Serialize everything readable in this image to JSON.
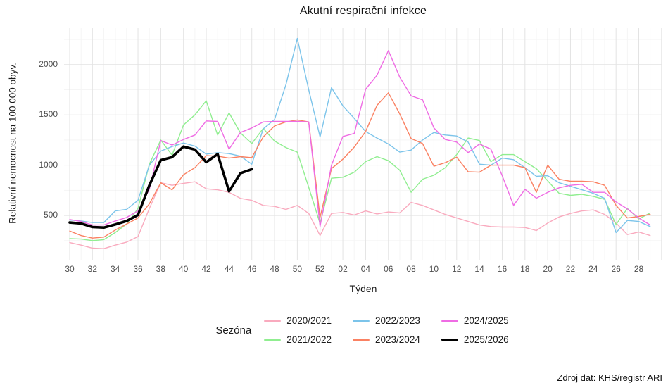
{
  "title": "Akutní respirační infekce",
  "y_axis": {
    "label": "Relativní nemocnost na 100 000 obyv.",
    "ticks": [
      500,
      1000,
      1500,
      2000
    ]
  },
  "x_axis": {
    "label": "Týden",
    "tick_labels": [
      "30",
      "32",
      "34",
      "36",
      "38",
      "40",
      "42",
      "44",
      "46",
      "48",
      "50",
      "52",
      "02",
      "04",
      "06",
      "08",
      "10",
      "12",
      "14",
      "16",
      "18",
      "20",
      "22",
      "24",
      "26",
      "28"
    ]
  },
  "legend": {
    "title": "Sezóna"
  },
  "source_note": "Zdroj dat: KHS/registr ARI",
  "colors": {
    "grid_major": "#e3e3e3",
    "grid_minor": "#f5f5f5",
    "axis_text": "#4d4d4d"
  },
  "chart_data": {
    "type": "line",
    "title": "Akutní respirační infekce",
    "xlabel": "Týden",
    "ylabel": "Relativní nemocnost na 100 000 obyv.",
    "ylim": [
      0,
      2350
    ],
    "grid": true,
    "legend_position": "bottom",
    "x": [
      "30",
      "31",
      "32",
      "33",
      "34",
      "35",
      "36",
      "37",
      "38",
      "39",
      "40",
      "41",
      "42",
      "43",
      "44",
      "45",
      "46",
      "47",
      "48",
      "49",
      "50",
      "51",
      "52",
      "01",
      "02",
      "03",
      "04",
      "05",
      "06",
      "07",
      "08",
      "09",
      "10",
      "11",
      "12",
      "13",
      "14",
      "15",
      "16",
      "17",
      "18",
      "19",
      "20",
      "21",
      "22",
      "23",
      "24",
      "25",
      "26",
      "27",
      "28",
      "29"
    ],
    "series": [
      {
        "name": "2020/2021",
        "color": "#f9aabe",
        "width": 1.4,
        "values": [
          230,
          205,
          175,
          170,
          205,
          235,
          290,
          570,
          825,
          800,
          820,
          835,
          765,
          755,
          730,
          670,
          650,
          600,
          590,
          560,
          600,
          520,
          300,
          520,
          530,
          505,
          545,
          515,
          535,
          525,
          630,
          600,
          555,
          510,
          475,
          440,
          405,
          390,
          385,
          385,
          380,
          350,
          425,
          485,
          520,
          545,
          555,
          510,
          425,
          310,
          335,
          300
        ]
      },
      {
        "name": "2021/2022",
        "color": "#90ee90",
        "width": 1.4,
        "values": [
          270,
          265,
          250,
          260,
          330,
          415,
          570,
          1010,
          1250,
          1100,
          1400,
          1500,
          1640,
          1300,
          1520,
          1320,
          1215,
          1365,
          1240,
          1175,
          1130,
          780,
          420,
          870,
          880,
          930,
          1035,
          1085,
          1045,
          950,
          730,
          860,
          900,
          975,
          1105,
          1270,
          1245,
          1035,
          1105,
          1105,
          1035,
          965,
          845,
          720,
          700,
          710,
          690,
          660,
          410,
          570,
          465,
          525
        ]
      },
      {
        "name": "2022/2023",
        "color": "#7cc4ea",
        "width": 1.4,
        "values": [
          455,
          445,
          430,
          430,
          545,
          560,
          650,
          1000,
          1140,
          1185,
          1220,
          1190,
          1110,
          1125,
          1115,
          1090,
          1010,
          1360,
          1455,
          1800,
          2260,
          1750,
          1280,
          1770,
          1590,
          1465,
          1335,
          1270,
          1210,
          1130,
          1150,
          1250,
          1325,
          1300,
          1290,
          1230,
          1010,
          1000,
          1070,
          1055,
          975,
          890,
          895,
          825,
          790,
          755,
          720,
          670,
          330,
          450,
          440,
          390
        ]
      },
      {
        "name": "2023/2024",
        "color": "#fa8162",
        "width": 1.4,
        "values": [
          345,
          300,
          275,
          285,
          355,
          415,
          475,
          615,
          825,
          755,
          905,
          975,
          1095,
          1090,
          1070,
          1085,
          1075,
          1280,
          1390,
          1430,
          1450,
          1430,
          480,
          965,
          1060,
          1180,
          1335,
          1595,
          1720,
          1510,
          1265,
          1215,
          990,
          1025,
          1080,
          935,
          930,
          1000,
          1000,
          1000,
          975,
          730,
          1000,
          860,
          840,
          840,
          835,
          800,
          600,
          475,
          490,
          510
        ]
      },
      {
        "name": "2024/2025",
        "color": "#ef6ce4",
        "width": 1.4,
        "values": [
          460,
          440,
          405,
          405,
          445,
          480,
          545,
          760,
          1245,
          1200,
          1255,
          1300,
          1440,
          1435,
          1160,
          1325,
          1370,
          1430,
          1435,
          1435,
          1435,
          1430,
          390,
          1000,
          1285,
          1315,
          1755,
          1895,
          2140,
          1875,
          1690,
          1650,
          1370,
          1255,
          1230,
          1125,
          1210,
          1160,
          895,
          600,
          760,
          672,
          730,
          775,
          800,
          810,
          730,
          730,
          635,
          565,
          475,
          405
        ]
      },
      {
        "name": "2025/2026",
        "color": "#000000",
        "width": 3.6,
        "values": [
          430,
          420,
          385,
          380,
          410,
          445,
          505,
          800,
          1050,
          1080,
          1185,
          1155,
          1030,
          1110,
          740,
          920,
          960
        ]
      }
    ]
  }
}
